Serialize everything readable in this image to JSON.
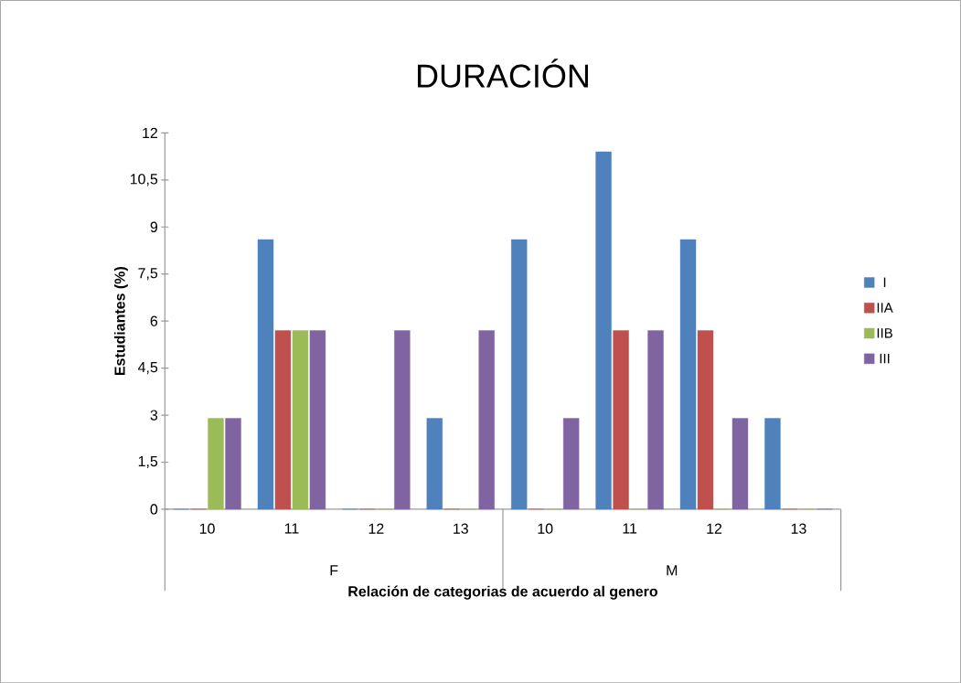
{
  "chart_data": {
    "type": "bar",
    "title": "DURACIÓN",
    "xlabel": "Relación de categorias de acuerdo al genero",
    "ylabel": "Estudiantes (%)",
    "categories": [
      "10",
      "11",
      "12",
      "13",
      "10",
      "11",
      "12",
      "13"
    ],
    "annotations": [
      "F",
      "M"
    ],
    "series": [
      {
        "name": "I",
        "color": "#4f81bd",
        "values": [
          0,
          8.6,
          0,
          2.9,
          8.6,
          11.4,
          8.6,
          2.9
        ]
      },
      {
        "name": "IIA",
        "color": "#c0504d",
        "values": [
          0,
          5.7,
          0,
          0,
          0,
          5.7,
          5.7,
          0
        ]
      },
      {
        "name": "IIB",
        "color": "#9bbb59",
        "values": [
          2.9,
          5.7,
          0,
          0,
          0,
          0,
          0,
          0
        ]
      },
      {
        "name": "III",
        "color": "#8064a2",
        "values": [
          2.9,
          5.7,
          5.7,
          5.7,
          2.9,
          5.7,
          2.9,
          0
        ]
      }
    ],
    "ylim": [
      0,
      12
    ],
    "yticks": [
      0,
      {
        "value": 1.5,
        "label": "1,5"
      },
      3,
      {
        "value": 4.5,
        "label": "4,5"
      },
      6,
      {
        "value": 7.5,
        "label": "7,5"
      },
      9,
      {
        "value": 10.5,
        "label": "10,5"
      },
      12
    ],
    "legend": "right"
  }
}
